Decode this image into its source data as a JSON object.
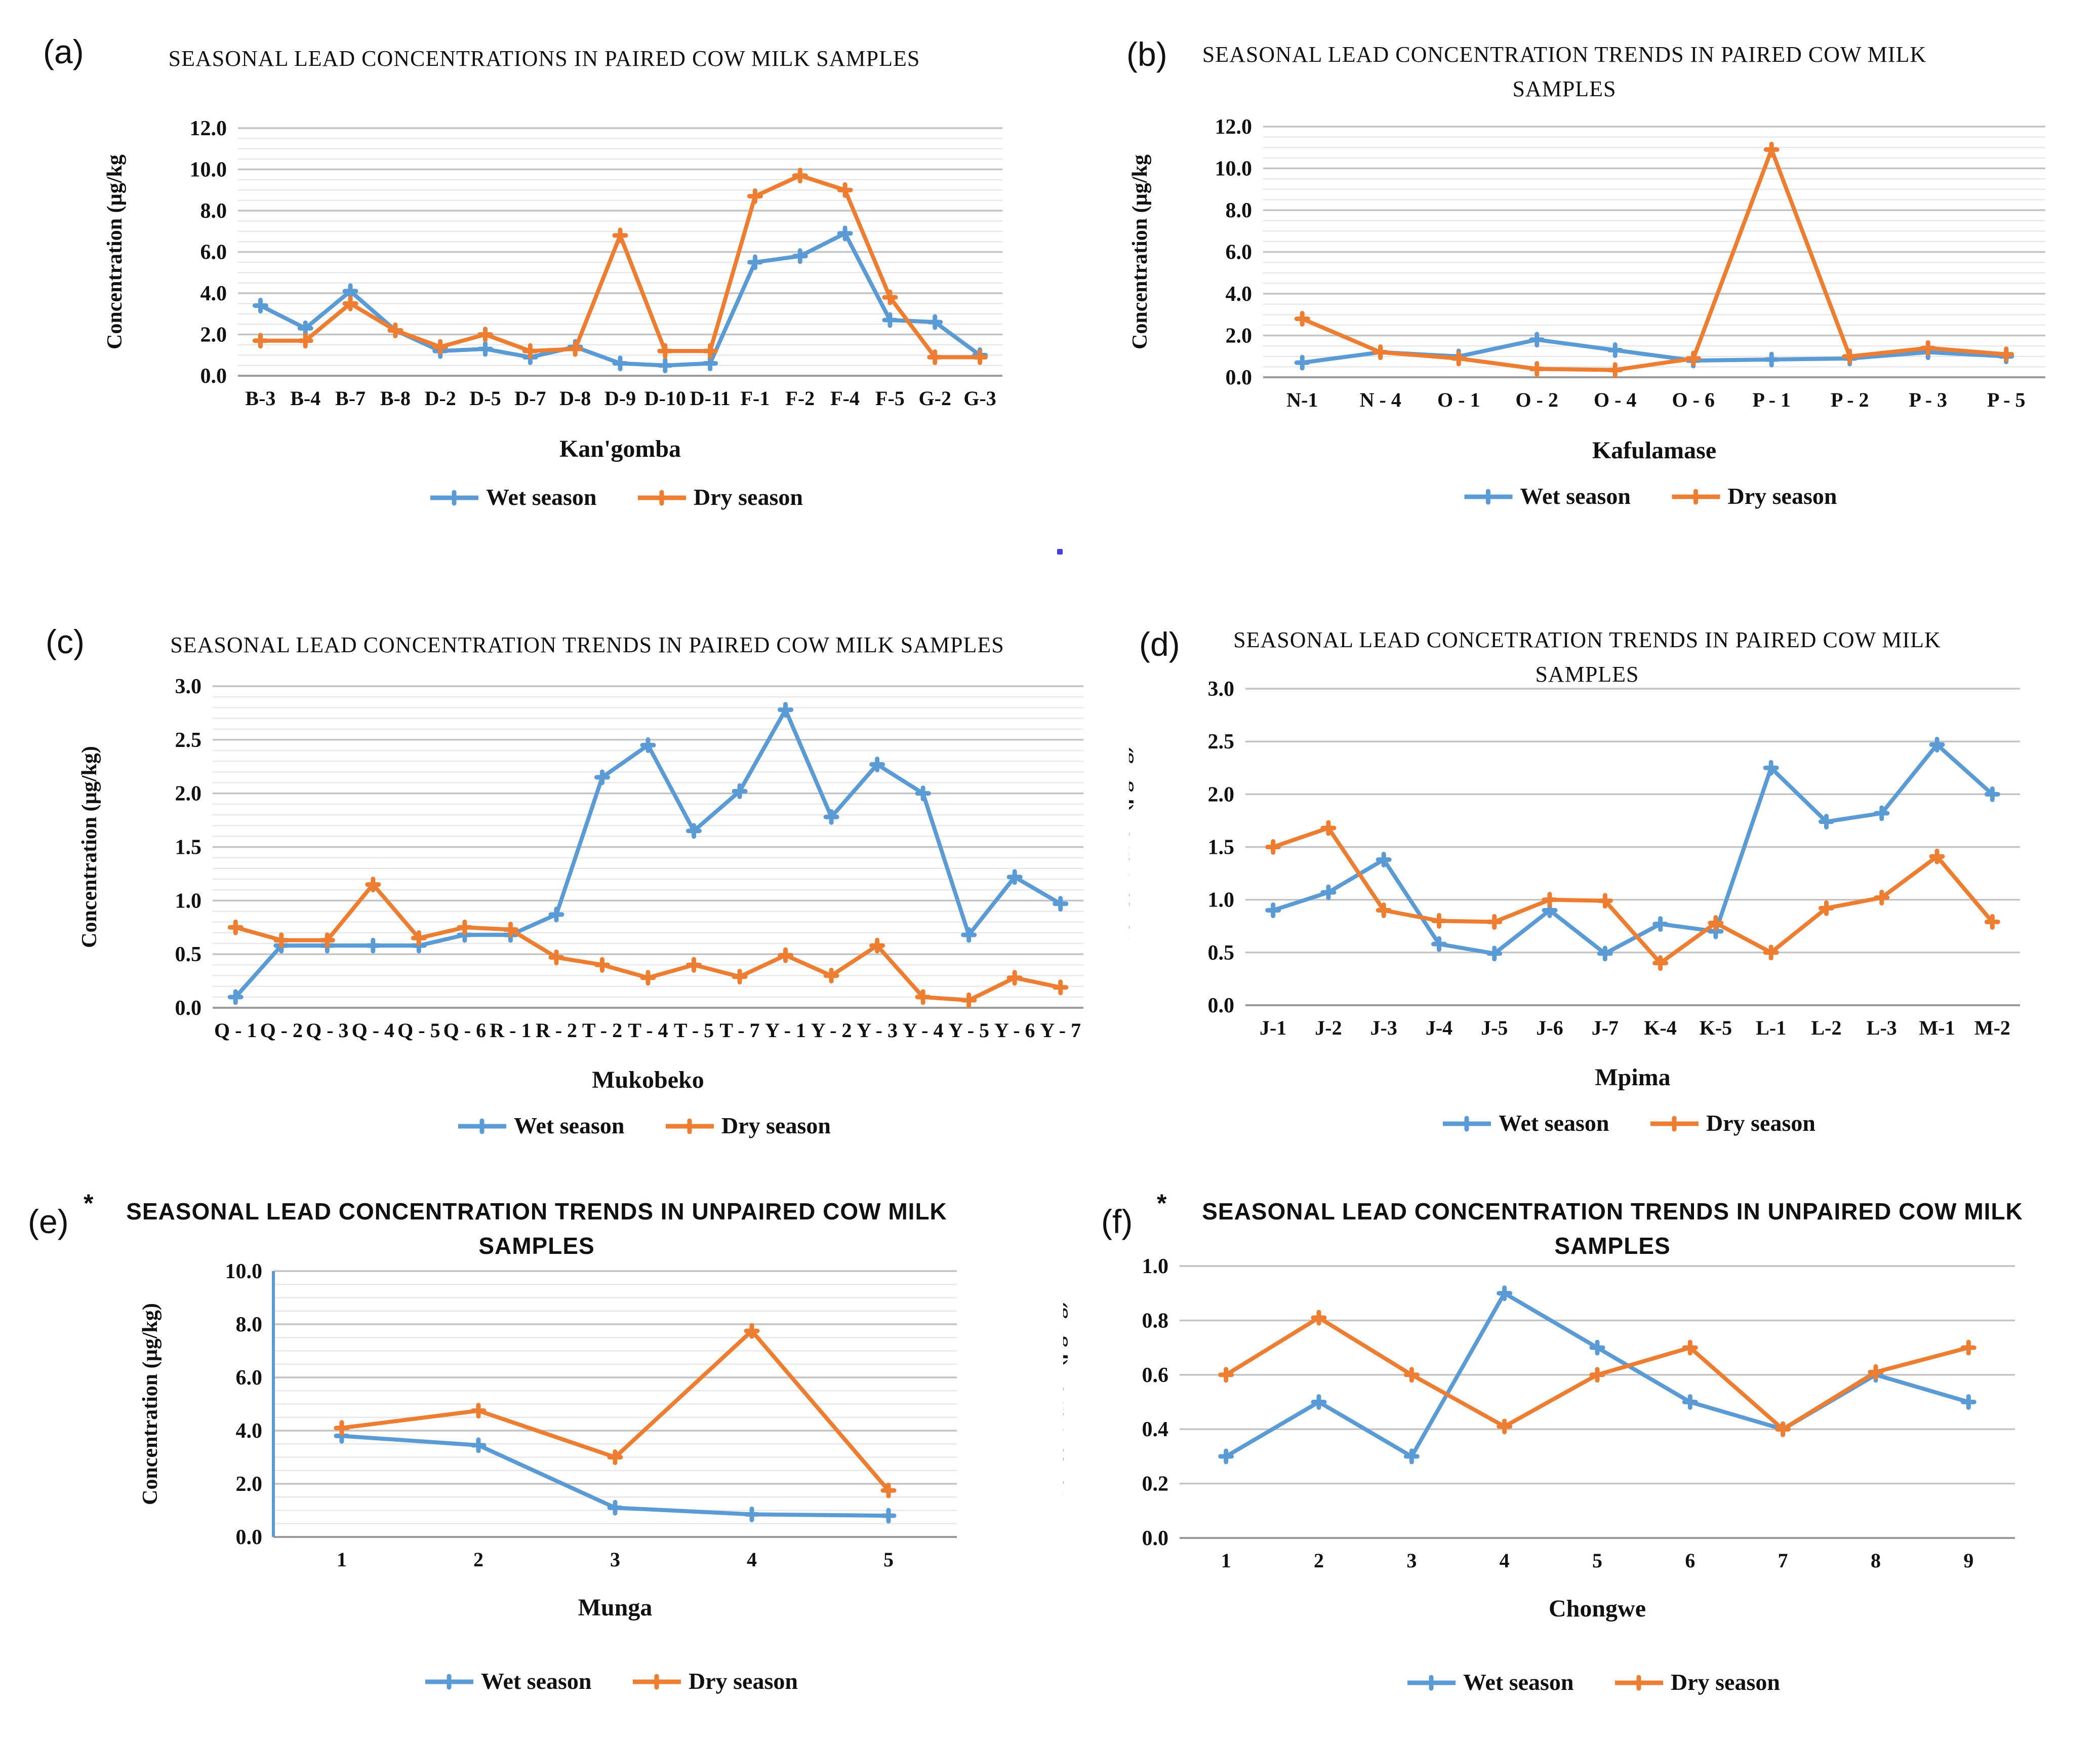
{
  "page": {
    "background": "#ffffff"
  },
  "colors": {
    "wet": "#5B9BD5",
    "dry": "#ED7D31",
    "grid_major": "#C3C3C3",
    "grid_minor": "#E7E7E7",
    "axis_line": "#9B9B9B",
    "text": "#111111",
    "stray_dot": "#2B2BE0"
  },
  "legend": {
    "wet_label": "Wet season",
    "dry_label": "Dry season"
  },
  "chart_data": [
    {
      "id": "a",
      "type": "line",
      "panel_label": "(a)",
      "panel_star": false,
      "title_lines": [
        "SEASONAL LEAD CONCENTRATIONS IN PAIRED COW MILK SAMPLES"
      ],
      "title_font": "serif",
      "xlabel": "Kan'gomba",
      "ylabel": "Concentration (µg/kg",
      "ylim": [
        0,
        12
      ],
      "ytick_step": 2.0,
      "yminor_step": 0.5,
      "grid": true,
      "legend_position": "bottom",
      "categories": [
        "B-3",
        "B-4",
        "B-7",
        "B-8",
        "D-2",
        "D-5",
        "D-7",
        "D-8",
        "D-9",
        "D-10",
        "D-11",
        "F-1",
        "F-2",
        "F-4",
        "F-5",
        "G-2",
        "G-3"
      ],
      "series": [
        {
          "name": "Wet season",
          "color": "#5B9BD5",
          "values": [
            3.4,
            2.3,
            4.1,
            2.2,
            1.2,
            1.3,
            0.9,
            1.4,
            0.6,
            0.5,
            0.6,
            5.5,
            5.8,
            6.9,
            2.7,
            2.6,
            1.0
          ]
        },
        {
          "name": "Dry season",
          "color": "#ED7D31",
          "values": [
            1.7,
            1.7,
            3.5,
            2.2,
            1.4,
            2.0,
            1.2,
            1.3,
            6.8,
            1.2,
            1.2,
            8.7,
            9.7,
            9.0,
            3.8,
            0.9,
            0.9
          ]
        }
      ]
    },
    {
      "id": "b",
      "type": "line",
      "panel_label": "(b)",
      "panel_star": false,
      "title_lines": [
        "SEASONAL LEAD CONCENTRATION TRENDS IN PAIRED COW MILK",
        "SAMPLES"
      ],
      "title_font": "serif",
      "xlabel": "Kafulamase",
      "ylabel": "Concentration (µg/kg",
      "ylim": [
        0,
        12
      ],
      "ytick_step": 2.0,
      "yminor_step": 0.5,
      "grid": true,
      "legend_position": "bottom",
      "categories": [
        "N-1",
        "N - 4",
        "O - 1",
        "O - 2",
        "O - 4",
        "O - 6",
        "P - 1",
        "P - 2",
        "P - 3",
        "P - 5"
      ],
      "series": [
        {
          "name": "Wet season",
          "color": "#5B9BD5",
          "values": [
            0.7,
            1.2,
            1.0,
            1.8,
            1.3,
            0.8,
            0.85,
            0.9,
            1.2,
            1.0
          ]
        },
        {
          "name": "Dry season",
          "color": "#ED7D31",
          "values": [
            2.8,
            1.2,
            0.9,
            0.4,
            0.35,
            0.9,
            10.9,
            1.0,
            1.4,
            1.1
          ]
        }
      ]
    },
    {
      "id": "c",
      "type": "line",
      "panel_label": "(c)",
      "panel_star": false,
      "title_lines": [
        "SEASONAL LEAD CONCENTRATION TRENDS IN PAIRED COW MILK SAMPLES"
      ],
      "title_font": "serif",
      "xlabel": "Mukobeko",
      "ylabel": "Concentration (µg/kg)",
      "ylim": [
        0,
        3
      ],
      "ytick_step": 0.5,
      "yminor_step": 0.1,
      "grid": true,
      "legend_position": "bottom",
      "categories": [
        "Q - 1",
        "Q - 2",
        "Q - 3",
        "Q - 4",
        "Q - 5",
        "Q - 6",
        "R - 1",
        "R - 2",
        "T - 2",
        "T - 4",
        "T - 5",
        "T - 7",
        "Y - 1",
        "Y - 2",
        "Y - 3",
        "Y - 4",
        "Y - 5",
        "Y - 6",
        "Y - 7"
      ],
      "series": [
        {
          "name": "Wet season",
          "color": "#5B9BD5",
          "values": [
            0.1,
            0.58,
            0.58,
            0.58,
            0.58,
            0.68,
            0.68,
            0.87,
            2.15,
            2.45,
            1.65,
            2.02,
            2.78,
            1.78,
            2.27,
            2.0,
            0.68,
            1.22,
            0.97
          ]
        },
        {
          "name": "Dry season",
          "color": "#ED7D31",
          "values": [
            0.75,
            0.63,
            0.63,
            1.15,
            0.65,
            0.75,
            0.73,
            0.47,
            0.4,
            0.28,
            0.4,
            0.29,
            0.49,
            0.3,
            0.58,
            0.1,
            0.07,
            0.28,
            0.19
          ]
        }
      ]
    },
    {
      "id": "d",
      "type": "line",
      "panel_label": "(d)",
      "panel_star": false,
      "title_lines": [
        "SEASONAL LEAD CONCETRATION TRENDS IN PAIRED COW MILK",
        "SAMPLES"
      ],
      "title_font": "serif",
      "xlabel": "Mpima",
      "ylabel": "Concentration (µg/kg)",
      "ylim": [
        0,
        3
      ],
      "ytick_step": 0.5,
      "yminor_step": null,
      "grid": true,
      "legend_position": "bottom",
      "categories": [
        "J-1",
        "J-2",
        "J-3",
        "J-4",
        "J-5",
        "J-6",
        "J-7",
        "K-4",
        "K-5",
        "L-1",
        "L-2",
        "L-3",
        "M-1",
        "M-2"
      ],
      "series": [
        {
          "name": "Wet season",
          "color": "#5B9BD5",
          "values": [
            0.9,
            1.07,
            1.38,
            0.58,
            0.49,
            0.9,
            0.49,
            0.77,
            0.7,
            2.25,
            1.74,
            1.82,
            2.47,
            2.0
          ]
        },
        {
          "name": "Dry season",
          "color": "#ED7D31",
          "values": [
            1.5,
            1.68,
            0.9,
            0.8,
            0.79,
            1.0,
            0.99,
            0.4,
            0.78,
            0.5,
            0.92,
            1.02,
            1.41,
            0.79
          ]
        }
      ]
    },
    {
      "id": "e",
      "type": "line",
      "panel_label": "(e)",
      "panel_star": true,
      "title_lines": [
        "SEASONAL LEAD CONCENTRATION TRENDS IN UNPAIRED COW MILK",
        "SAMPLES"
      ],
      "title_font": "sans",
      "xlabel": "Munga",
      "ylabel": "Concentration (µg/kg)",
      "ylim": [
        0,
        10
      ],
      "ytick_step": 2.0,
      "yminor_step": 0.5,
      "grid": true,
      "left_axis_color": "#5B9BD5",
      "legend_position": "bottom",
      "categories": [
        "1",
        "2",
        "3",
        "4",
        "5"
      ],
      "series": [
        {
          "name": "Wet season",
          "color": "#5B9BD5",
          "values": [
            3.8,
            3.45,
            1.1,
            0.85,
            0.8
          ]
        },
        {
          "name": "Dry season",
          "color": "#ED7D31",
          "values": [
            4.1,
            4.75,
            3.0,
            7.75,
            1.75
          ]
        }
      ]
    },
    {
      "id": "f",
      "type": "line",
      "panel_label": "(f)",
      "panel_star": true,
      "title_lines": [
        "SEASONAL LEAD CONCENTRATION TRENDS IN UNPAIRED COW MILK",
        "SAMPLES"
      ],
      "title_font": "sans",
      "xlabel": "Chongwe",
      "ylabel": "Concentration (µg/kg)",
      "ylim": [
        0,
        1
      ],
      "ytick_step": 0.2,
      "yminor_step": null,
      "grid": true,
      "legend_position": "bottom",
      "categories": [
        "1",
        "2",
        "3",
        "4",
        "5",
        "6",
        "7",
        "8",
        "9"
      ],
      "series": [
        {
          "name": "Wet season",
          "color": "#5B9BD5",
          "values": [
            0.3,
            0.5,
            0.3,
            0.9,
            0.7,
            0.5,
            0.4,
            0.6,
            0.5
          ]
        },
        {
          "name": "Dry season",
          "color": "#ED7D31",
          "values": [
            0.6,
            0.81,
            0.6,
            0.41,
            0.6,
            0.7,
            0.4,
            0.61,
            0.7
          ]
        }
      ]
    }
  ]
}
